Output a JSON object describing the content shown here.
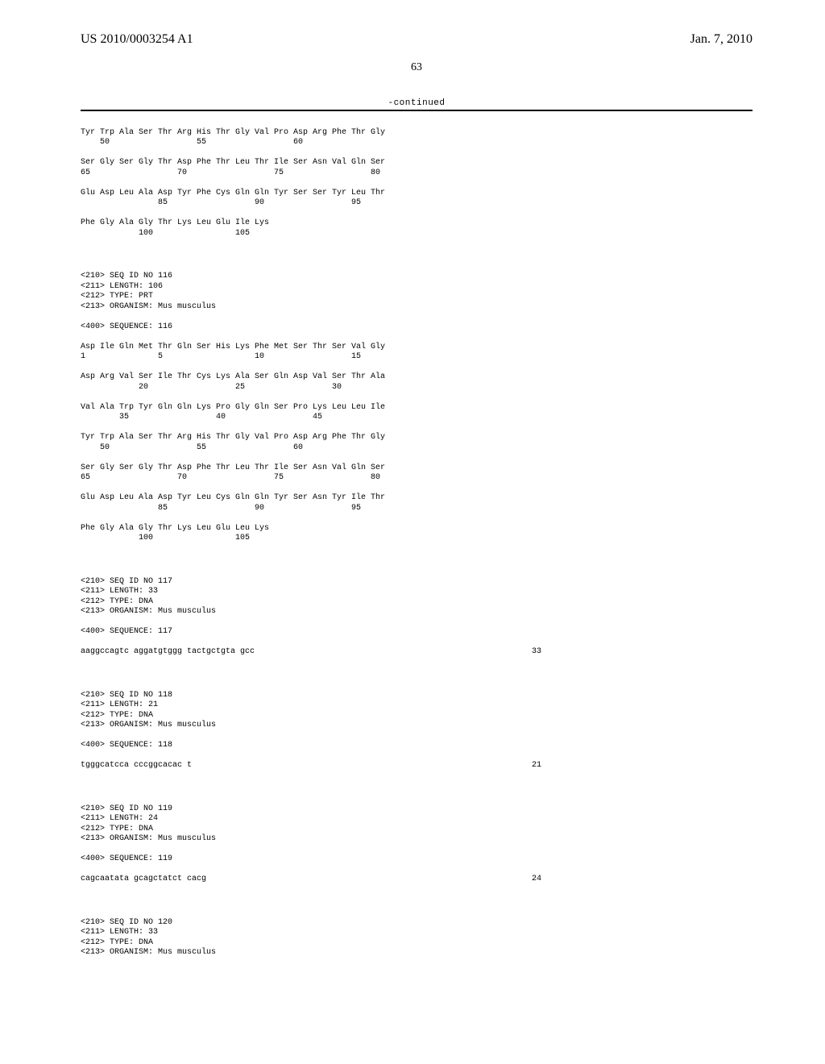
{
  "header": {
    "pub_number": "US 2010/0003254 A1",
    "pub_date": "Jan. 7, 2010",
    "page_number": "63"
  },
  "continued": "-continued",
  "seq115_tail": {
    "rows": [
      {
        "aa": "Tyr Trp Ala Ser Thr Arg His Thr Gly Val Pro Asp Arg Phe Thr Gly",
        "nums": "    50                  55                  60"
      },
      {
        "aa": "Ser Gly Ser Gly Thr Asp Phe Thr Leu Thr Ile Ser Asn Val Gln Ser",
        "nums": "65                  70                  75                  80"
      },
      {
        "aa": "Glu Asp Leu Ala Asp Tyr Phe Cys Gln Gln Tyr Ser Ser Tyr Leu Thr",
        "nums": "                85                  90                  95"
      },
      {
        "aa": "Phe Gly Ala Gly Thr Lys Leu Glu Ile Lys",
        "nums": "            100                 105"
      }
    ]
  },
  "seq116": {
    "header": [
      "<210> SEQ ID NO 116",
      "<211> LENGTH: 106",
      "<212> TYPE: PRT",
      "<213> ORGANISM: Mus musculus"
    ],
    "seq_label": "<400> SEQUENCE: 116",
    "rows": [
      {
        "aa": "Asp Ile Gln Met Thr Gln Ser His Lys Phe Met Ser Thr Ser Val Gly",
        "nums": "1               5                   10                  15"
      },
      {
        "aa": "Asp Arg Val Ser Ile Thr Cys Lys Ala Ser Gln Asp Val Ser Thr Ala",
        "nums": "            20                  25                  30"
      },
      {
        "aa": "Val Ala Trp Tyr Gln Gln Lys Pro Gly Gln Ser Pro Lys Leu Leu Ile",
        "nums": "        35                  40                  45"
      },
      {
        "aa": "Tyr Trp Ala Ser Thr Arg His Thr Gly Val Pro Asp Arg Phe Thr Gly",
        "nums": "    50                  55                  60"
      },
      {
        "aa": "Ser Gly Ser Gly Thr Asp Phe Thr Leu Thr Ile Ser Asn Val Gln Ser",
        "nums": "65                  70                  75                  80"
      },
      {
        "aa": "Glu Asp Leu Ala Asp Tyr Leu Cys Gln Gln Tyr Ser Asn Tyr Ile Thr",
        "nums": "                85                  90                  95"
      },
      {
        "aa": "Phe Gly Ala Gly Thr Lys Leu Glu Leu Lys",
        "nums": "            100                 105"
      }
    ]
  },
  "seq117": {
    "header": [
      "<210> SEQ ID NO 117",
      "<211> LENGTH: 33",
      "<212> TYPE: DNA",
      "<213> ORGANISM: Mus musculus"
    ],
    "seq_label": "<400> SEQUENCE: 117",
    "dna": "aaggccagtc aggatgtggg tactgctgta gcc",
    "count": "33"
  },
  "seq118": {
    "header": [
      "<210> SEQ ID NO 118",
      "<211> LENGTH: 21",
      "<212> TYPE: DNA",
      "<213> ORGANISM: Mus musculus"
    ],
    "seq_label": "<400> SEQUENCE: 118",
    "dna": "tgggcatcca cccggcacac t",
    "count": "21"
  },
  "seq119": {
    "header": [
      "<210> SEQ ID NO 119",
      "<211> LENGTH: 24",
      "<212> TYPE: DNA",
      "<213> ORGANISM: Mus musculus"
    ],
    "seq_label": "<400> SEQUENCE: 119",
    "dna": "cagcaatata gcagctatct cacg",
    "count": "24"
  },
  "seq120": {
    "header": [
      "<210> SEQ ID NO 120",
      "<211> LENGTH: 33",
      "<212> TYPE: DNA",
      "<213> ORGANISM: Mus musculus"
    ]
  }
}
